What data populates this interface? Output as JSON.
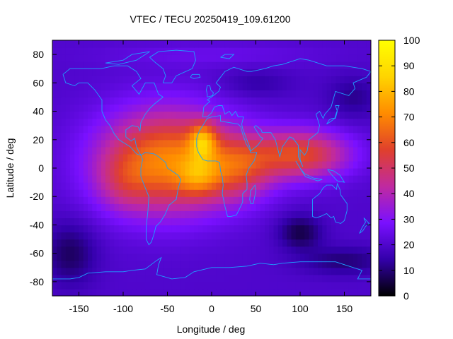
{
  "chart_data": {
    "type": "heatmap",
    "title": "VTEC / TECU 20250419_109.61200",
    "xlabel": "Longitude / deg",
    "ylabel": "Latitude / deg",
    "xlim": [
      -180,
      180
    ],
    "ylim": [
      -90,
      90
    ],
    "x_ticks": [
      -150,
      -100,
      -50,
      0,
      50,
      100,
      150
    ],
    "y_ticks": [
      -80,
      -60,
      -40,
      -20,
      0,
      20,
      40,
      60,
      80
    ],
    "colorbar": {
      "range": [
        0,
        100
      ],
      "ticks": [
        0,
        10,
        20,
        30,
        40,
        50,
        60,
        70,
        80,
        90,
        100
      ],
      "palette": [
        "#000000",
        "#3300aa",
        "#7a10ff",
        "#c02aa0",
        "#e0402c",
        "#ff8c00",
        "#ffd400",
        "#ffff00"
      ]
    },
    "features": [
      {
        "name": "background",
        "value": 20
      },
      {
        "name": "equatorial-anomaly-main",
        "lon": -50,
        "lat": 5,
        "value": 70
      },
      {
        "name": "peak-north",
        "lon": -10,
        "lat": 20,
        "value": 95
      },
      {
        "name": "peak-south",
        "lon": -15,
        "lat": -5,
        "value": 85
      },
      {
        "name": "africa-indian-arm",
        "lon": 100,
        "lat": 10,
        "value": 60
      },
      {
        "name": "low-south-pacific",
        "lon": -160,
        "lat": -60,
        "value": 8
      },
      {
        "name": "low-south-indian",
        "lon": 100,
        "lat": -45,
        "value": 8
      },
      {
        "name": "low-north-pacific",
        "lon": 160,
        "lat": 50,
        "value": 12
      }
    ]
  }
}
